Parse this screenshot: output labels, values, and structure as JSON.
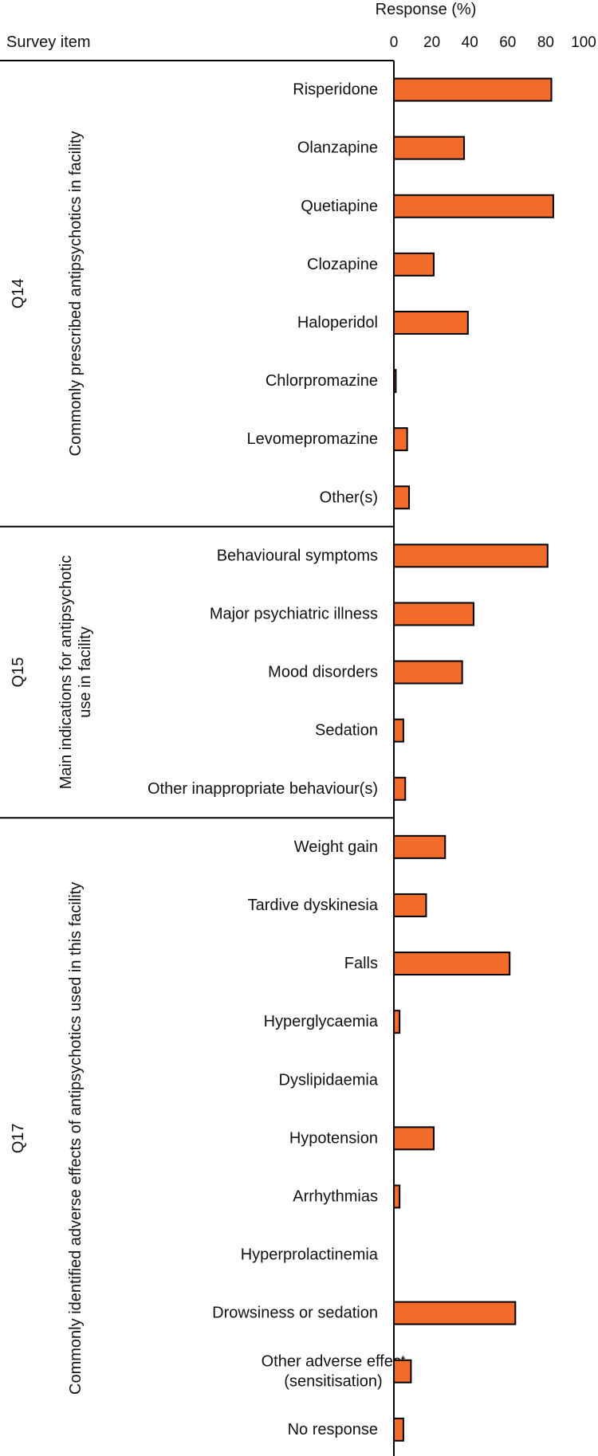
{
  "chart_data": {
    "type": "bar",
    "orientation": "horizontal",
    "column_header": "Survey item",
    "xlabel": "Response (%)",
    "xlim": [
      0,
      100
    ],
    "xticks": [
      0,
      20,
      40,
      60,
      80,
      100
    ],
    "bar_color": "#F26B2A",
    "grid": false,
    "groups": [
      {
        "code": "Q14",
        "title_lines": [
          "Commonly prescribed antipsychotics in facility"
        ],
        "items": [
          {
            "lines": [
              "Risperidone"
            ],
            "value": 83
          },
          {
            "lines": [
              "Olanzapine"
            ],
            "value": 37
          },
          {
            "lines": [
              "Quetiapine"
            ],
            "value": 84
          },
          {
            "lines": [
              "Clozapine"
            ],
            "value": 21
          },
          {
            "lines": [
              "Haloperidol"
            ],
            "value": 39
          },
          {
            "lines": [
              "Chlorpromazine"
            ],
            "value": 1
          },
          {
            "lines": [
              "Levomepromazine"
            ],
            "value": 7
          },
          {
            "lines": [
              "Other(s)"
            ],
            "value": 8
          }
        ]
      },
      {
        "code": "Q15",
        "title_lines": [
          "Main indications for antipsychotic",
          "use in facility"
        ],
        "items": [
          {
            "lines": [
              "Behavioural symptoms"
            ],
            "value": 81
          },
          {
            "lines": [
              "Major psychiatric illness"
            ],
            "value": 42
          },
          {
            "lines": [
              "Mood disorders"
            ],
            "value": 36
          },
          {
            "lines": [
              "Sedation"
            ],
            "value": 5
          },
          {
            "lines": [
              "Other inappropriate behaviour(s)"
            ],
            "value": 6
          }
        ]
      },
      {
        "code": "Q17",
        "title_lines": [
          "Commonly identified adverse effects of antipsychotics used in this facility"
        ],
        "items": [
          {
            "lines": [
              "Weight gain"
            ],
            "value": 27
          },
          {
            "lines": [
              "Tardive dyskinesia"
            ],
            "value": 17
          },
          {
            "lines": [
              "Falls"
            ],
            "value": 61
          },
          {
            "lines": [
              "Hyperglycaemia"
            ],
            "value": 3
          },
          {
            "lines": [
              "Dyslipidaemia"
            ],
            "value": 0
          },
          {
            "lines": [
              "Hypotension"
            ],
            "value": 21
          },
          {
            "lines": [
              "Arrhythmias"
            ],
            "value": 3
          },
          {
            "lines": [
              "Hyperprolactinemia"
            ],
            "value": 0
          },
          {
            "lines": [
              "Drowsiness or sedation"
            ],
            "value": 64
          },
          {
            "lines": [
              "Other adverse effect",
              "(sensitisation)"
            ],
            "value": 9
          },
          {
            "lines": [
              "No response"
            ],
            "value": 5
          }
        ]
      }
    ]
  }
}
